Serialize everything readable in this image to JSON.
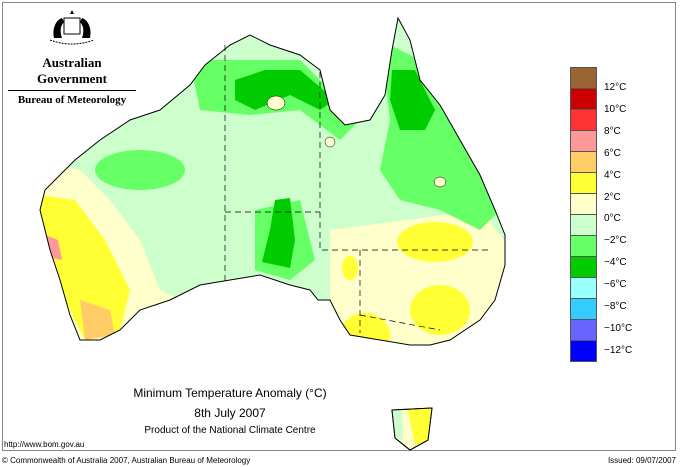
{
  "logo": {
    "line1": "Australian Government",
    "line2": "Bureau of Meteorology"
  },
  "title": {
    "main": "Minimum Temperature Anomaly (°C)",
    "date": "8th July 2007",
    "product": "Product of the National Climate Centre"
  },
  "footer": {
    "url": "http://www.bom.gov.au",
    "copyright": "© Commonwealth of Australia 2007, Australian Bureau of Meteorology",
    "issued": "Issued: 09/07/2007"
  },
  "legend": {
    "colors": [
      "#996633",
      "#cc0000",
      "#ff3333",
      "#ff9999",
      "#ffcc66",
      "#ffff33",
      "#ffffcc",
      "#ccffcc",
      "#66ff66",
      "#00cc00",
      "#99ffff",
      "#33ccff",
      "#6666ff",
      "#0000ff"
    ],
    "labels": [
      "12°C",
      "10°C",
      "8°C",
      "6°C",
      "4°C",
      "2°C",
      "0°C",
      "−2°C",
      "−4°C",
      "−6°C",
      "−8°C",
      "−10°C",
      "−12°C"
    ]
  }
}
